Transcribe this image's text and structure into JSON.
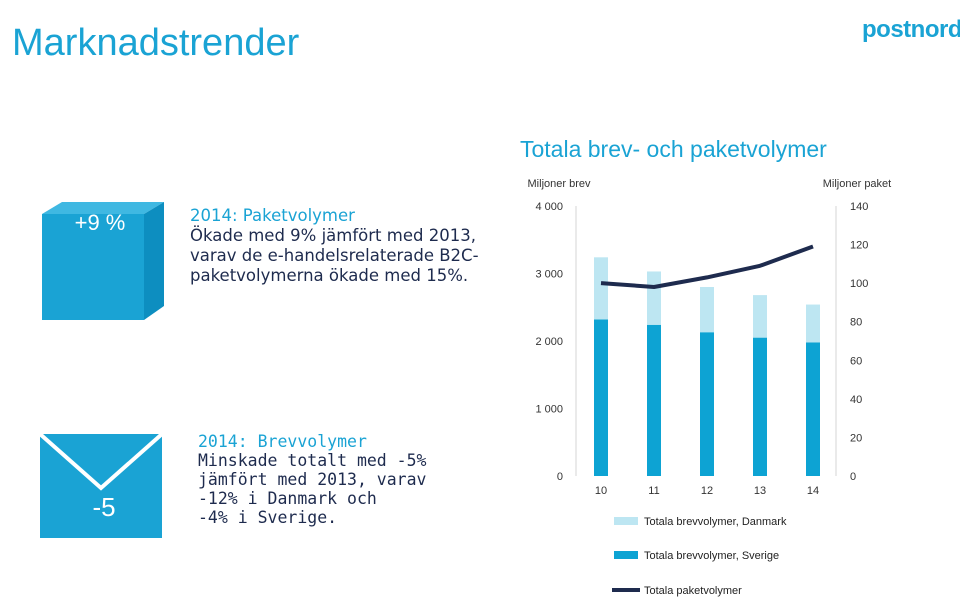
{
  "page_title": "Marknadstrender",
  "logo_text": "postnord",
  "parcel_box": {
    "stat": "+9 %",
    "heading": "2014: Paketvolymer",
    "body": "Ökade med 9% jämfört med 2013, varav de e-handelsrelaterade B2C-paketvolymerna ökade med 15%."
  },
  "envelope": {
    "stat": "-5",
    "heading": "2014: Brevvolymer",
    "body_lines": [
      "Minskade totalt med -5%",
      "jämfört med 2013, varav",
      "-12% i Danmark och",
      "-4% i Sverige."
    ]
  },
  "colors": {
    "brand_blue": "#1aa3d4",
    "navy": "#1e2b4e",
    "light_bar": "#bde6f2",
    "dark_bar": "#0da3d3",
    "line": "#1e2b4e"
  },
  "chart_data": {
    "type": "bar",
    "title": "Totala brev- och paketvolymer",
    "ylabel_left": "Miljoner brev",
    "ylabel_right": "Miljoner paket",
    "categories": [
      "10",
      "11",
      "12",
      "13",
      "14"
    ],
    "ylim_left": [
      0,
      4000
    ],
    "ylim_right": [
      0,
      140
    ],
    "yticks_left": [
      "0",
      "1 000",
      "2 000",
      "3 000",
      "4 000"
    ],
    "yticks_right": [
      "0",
      "20",
      "40",
      "60",
      "80",
      "100",
      "120",
      "140"
    ],
    "legend_position": "bottom",
    "series": [
      {
        "name": "Totala brevvolymer, Danmark",
        "kind": "stacked-bar-top",
        "values": [
          920,
          790,
          670,
          630,
          560
        ]
      },
      {
        "name": "Totala brevvolymer, Sverige",
        "kind": "stacked-bar-base",
        "values": [
          2320,
          2240,
          2130,
          2050,
          1980
        ]
      },
      {
        "name": "Totala paketvolymer",
        "kind": "line-right-axis",
        "values": [
          100,
          98,
          103,
          109,
          119
        ]
      }
    ]
  }
}
